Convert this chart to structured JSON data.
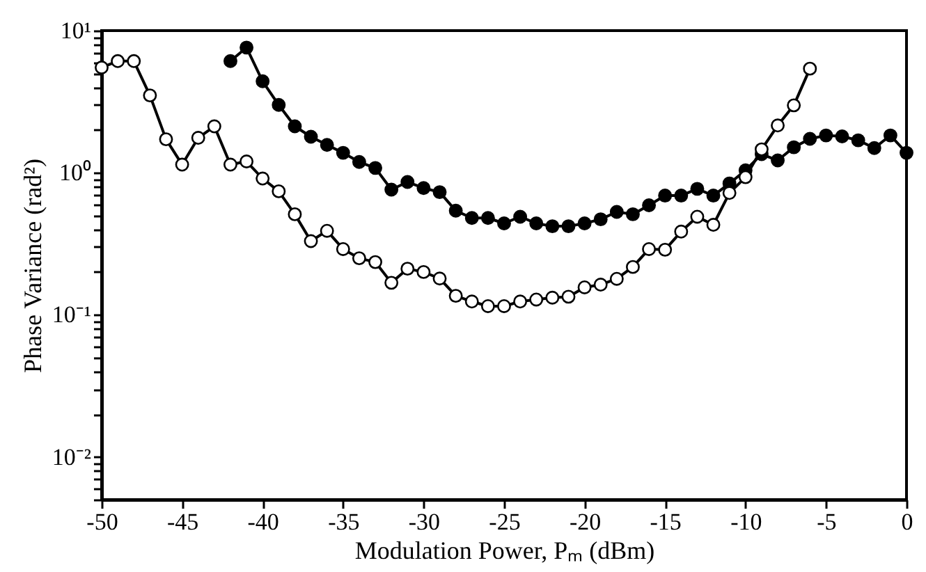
{
  "chart_data": {
    "type": "line",
    "xlabel": "Modulation Power, Pₘ (dBm)",
    "ylabel": "Phase Variance (rad²)",
    "log": "y",
    "xlim": [
      -50,
      0
    ],
    "xticks": [
      -50,
      -45,
      -40,
      -35,
      -30,
      -25,
      -20,
      -15,
      -10,
      -5,
      0
    ],
    "ylim": [
      0.005,
      10
    ],
    "yticks": [
      {
        "value": 0.005,
        "label": null
      },
      {
        "value": 0.006,
        "label": null
      },
      {
        "value": 0.007,
        "label": null
      },
      {
        "value": 0.008,
        "label": null
      },
      {
        "value": 0.009,
        "label": null
      },
      {
        "value": 0.01,
        "label": "10⁻²"
      },
      {
        "value": 0.02,
        "label": null
      },
      {
        "value": 0.03,
        "label": null
      },
      {
        "value": 0.04,
        "label": null
      },
      {
        "value": 0.05,
        "label": null
      },
      {
        "value": 0.06,
        "label": null
      },
      {
        "value": 0.07,
        "label": null
      },
      {
        "value": 0.08,
        "label": null
      },
      {
        "value": 0.09,
        "label": null
      },
      {
        "value": 0.1,
        "label": "10⁻¹"
      },
      {
        "value": 0.2,
        "label": null
      },
      {
        "value": 0.3,
        "label": null
      },
      {
        "value": 0.4,
        "label": null
      },
      {
        "value": 0.5,
        "label": null
      },
      {
        "value": 0.6,
        "label": null
      },
      {
        "value": 0.7,
        "label": null
      },
      {
        "value": 0.8,
        "label": null
      },
      {
        "value": 0.9,
        "label": null
      },
      {
        "value": 1,
        "label": "10⁰"
      },
      {
        "value": 2,
        "label": null
      },
      {
        "value": 3,
        "label": null
      },
      {
        "value": 4,
        "label": null
      },
      {
        "value": 5,
        "label": null
      },
      {
        "value": 6,
        "label": null
      },
      {
        "value": 7,
        "label": null
      },
      {
        "value": 8,
        "label": null
      },
      {
        "value": 9,
        "label": null
      },
      {
        "value": 10,
        "label": "10¹"
      }
    ],
    "grid": false,
    "marker": "circle",
    "line_style": "solid",
    "series": [
      {
        "color": "#000000",
        "x": [
          -42,
          -41,
          -40,
          -39,
          -38,
          -37,
          -36,
          -35,
          -34,
          -33,
          -32,
          -31,
          -30,
          -29,
          -28,
          -27,
          -26,
          -25,
          -24,
          -23,
          -22,
          -21,
          -20,
          -19,
          -18,
          -17,
          -16,
          -15,
          -14,
          -13,
          -12,
          -11,
          -10,
          -9,
          -8,
          -7,
          -6,
          -5,
          -4,
          -3,
          -2,
          -1,
          0
        ],
        "values": [
          6.1,
          7.6,
          4.4,
          3.0,
          2.12,
          1.79,
          1.57,
          1.38,
          1.19,
          1.08,
          0.76,
          0.86,
          0.78,
          0.73,
          0.54,
          0.48,
          0.48,
          0.44,
          0.49,
          0.44,
          0.42,
          0.42,
          0.44,
          0.47,
          0.53,
          0.51,
          0.59,
          0.69,
          0.69,
          0.77,
          0.69,
          0.84,
          1.04,
          1.35,
          1.22,
          1.51,
          1.73,
          1.83,
          1.8,
          1.69,
          1.49,
          1.83,
          1.38
        ]
      },
      {
        "color": "#ffffff",
        "x": [
          -50,
          -49,
          -48,
          -47,
          -46,
          -45,
          -44,
          -43,
          -42,
          -41,
          -40,
          -39,
          -38,
          -37,
          -36,
          -35,
          -34,
          -33,
          -32,
          -31,
          -30,
          -29,
          -28,
          -27,
          -26,
          -25,
          -24,
          -23,
          -22,
          -21,
          -20,
          -19,
          -18,
          -17,
          -16,
          -15,
          -14,
          -13,
          -12,
          -11,
          -10,
          -9,
          -8,
          -7,
          -6
        ],
        "values": [
          5.5,
          6.1,
          6.1,
          3.5,
          1.72,
          1.14,
          1.76,
          2.12,
          1.14,
          1.2,
          0.91,
          0.74,
          0.51,
          0.33,
          0.39,
          0.29,
          0.25,
          0.235,
          0.168,
          0.211,
          0.2,
          0.18,
          0.136,
          0.124,
          0.115,
          0.115,
          0.124,
          0.128,
          0.132,
          0.134,
          0.156,
          0.163,
          0.179,
          0.217,
          0.29,
          0.287,
          0.385,
          0.49,
          0.43,
          0.72,
          0.93,
          1.46,
          2.15,
          2.98,
          5.4
        ]
      }
    ]
  }
}
